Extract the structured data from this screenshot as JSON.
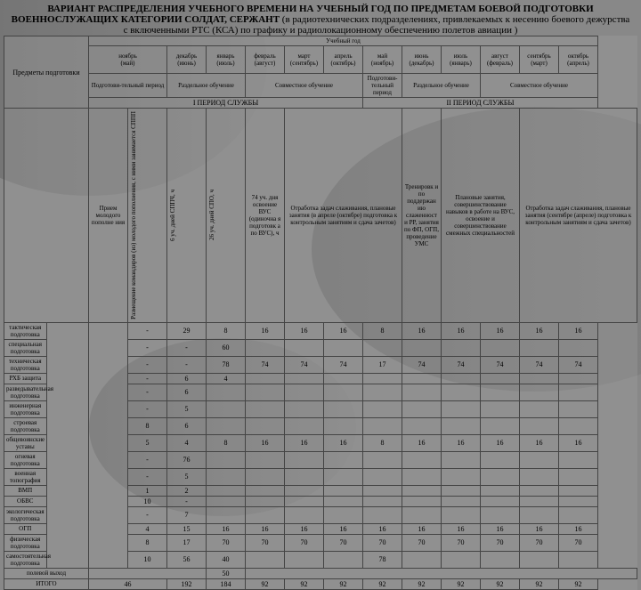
{
  "title": "ВАРИАНТ РАСПРЕДЕЛЕНИЯ УЧЕБНОГО ВРЕМЕНИ НА УЧЕБНЫЙ ГОД ПО ПРЕДМЕТАМ БОЕВОЙ ПОДГОТОВКИ ВОЕННОСЛУЖАЩИХ КАТЕГОРИИ СОЛДАТ, СЕРЖАНТ",
  "title2": " (в радиотехнических подразделениях, привлекаемых к несению боевого дежурства с включенными РТС (КСА) по графику и радиолокационному обеспечению полетов авиации )",
  "year_label": "Учебный год",
  "subjects_label": "Предметы подготовки",
  "months": [
    {
      "m": "ноябрь",
      "a": "(май)"
    },
    {
      "m": "декабрь",
      "a": "(июнь)"
    },
    {
      "m": "январь",
      "a": "(июль)"
    },
    {
      "m": "февраль",
      "a": "(август)"
    },
    {
      "m": "март",
      "a": "(сентябрь)"
    },
    {
      "m": "апрель",
      "a": "(октябрь)"
    },
    {
      "m": "май",
      "a": "(ноябрь)"
    },
    {
      "m": "июнь",
      "a": "(декабрь)"
    },
    {
      "m": "июль",
      "a": "(январь)"
    },
    {
      "m": "август",
      "a": "(февраль)"
    },
    {
      "m": "сентябрь",
      "a": "(март)"
    },
    {
      "m": "октябрь",
      "a": "(апрель)"
    }
  ],
  "bands": {
    "b1": "Подготови-тельный период",
    "b2": "Раздельное обучение",
    "b3": "Совместное обучение",
    "b4": "Подготови-тельный период",
    "b5": "Раздельное обучение",
    "b6": "Совместное обучение"
  },
  "period1": "I ПЕРИОД СЛУЖБЫ",
  "period2": "II ПЕРИОД СЛУЖБЫ",
  "cols": {
    "c0": "Прием молодого пополне ния",
    "c1": "Размещение командиров (из) молодого пополнения, с ними занимается СППП",
    "c2": "6 уч. дней СППЧ, ч",
    "c3": "26 уч. дней СПО, ч",
    "c4": "74 уч. дня освоение ВУС (одиночна я подготовк а по ВУС), ч",
    "c5": "Отработка задач слаживания, плановые занятия (в апреле (октябре) подготовка к контрольным занятиям и сдача зачетов)",
    "c6": "Тренировк и по поддержан ию слаженност и РР, занятия по ФП, ОГП, проведение УМС",
    "c7": "Плановые занятия, совершенствование навыков в работе на ВУС, освоение и совершенствование смежных специальностей",
    "c8": "Отработка задач слаживания, плановые занятия (сентябре (апреле) подготовка к контрольным занятиям и сдача зачетов)"
  },
  "subjects": [
    "тактическая подготовка",
    "специальная подготовка",
    "техническая подготовка",
    "РХБ защита",
    "разведывательная подготовка",
    "инженерная подготовка",
    "строевая подготовка",
    "общевоинские уставы",
    "огневая подготовка",
    "военная топография",
    "ВМП",
    "ОБВС",
    "экологическая подготовка",
    "ОГП",
    "физическая подготовка",
    "самостоятельная подготовка"
  ],
  "rows": [
    [
      "-",
      "29",
      "8",
      "16",
      "16",
      "16",
      "8",
      "16",
      "16",
      "16",
      "16",
      "16"
    ],
    [
      "-",
      "-",
      "60",
      "",
      "",
      "",
      "",
      "",
      "",
      "",
      "",
      ""
    ],
    [
      "-",
      "-",
      "78",
      "74",
      "74",
      "74",
      "17",
      "74",
      "74",
      "74",
      "74",
      "74"
    ],
    [
      "-",
      "6",
      "4",
      "",
      "",
      "",
      "",
      "",
      "",
      "",
      "",
      ""
    ],
    [
      "-",
      "6",
      "",
      "",
      "",
      "",
      "",
      "",
      "",
      "",
      "",
      ""
    ],
    [
      "-",
      "5",
      "",
      "",
      "",
      "",
      "",
      "",
      "",
      "",
      "",
      ""
    ],
    [
      "8",
      "6",
      "",
      "",
      "",
      "",
      "",
      "",
      "",
      "",
      "",
      ""
    ],
    [
      "5",
      "4",
      "8",
      "16",
      "16",
      "16",
      "8",
      "16",
      "16",
      "16",
      "16",
      "16"
    ],
    [
      "-",
      "76",
      "",
      "",
      "",
      "",
      "",
      "",
      "",
      "",
      "",
      ""
    ],
    [
      "-",
      "5",
      "",
      "",
      "",
      "",
      "",
      "",
      "",
      "",
      "",
      ""
    ],
    [
      "1",
      "2",
      "",
      "",
      "",
      "",
      "",
      "",
      "",
      "",
      "",
      ""
    ],
    [
      "10",
      "-",
      "",
      "",
      "",
      "",
      "",
      "",
      "",
      "",
      "",
      ""
    ],
    [
      "-",
      "7",
      "",
      "",
      "",
      "",
      "",
      "",
      "",
      "",
      "",
      ""
    ],
    [
      "4",
      "15",
      "16",
      "16",
      "16",
      "16",
      "16",
      "16",
      "16",
      "16",
      "16",
      "16"
    ],
    [
      "8",
      "17",
      "70",
      "70",
      "70",
      "70",
      "70",
      "70",
      "70",
      "70",
      "70",
      "70"
    ],
    [
      "10",
      "56",
      "40",
      "",
      "",
      "",
      "78",
      "",
      "",
      "",
      "",
      ""
    ]
  ],
  "field_out": {
    "label": "полевой выход",
    "v": "50"
  },
  "total": {
    "label": "ИТОГО",
    "v1": "46",
    "v2": "192",
    "v3": "184",
    "v4": "92",
    "v5": "92",
    "v6": "92",
    "v7": "92",
    "v8": "92",
    "v9": "92",
    "v10": "92",
    "v11": "92",
    "v12": "92"
  }
}
